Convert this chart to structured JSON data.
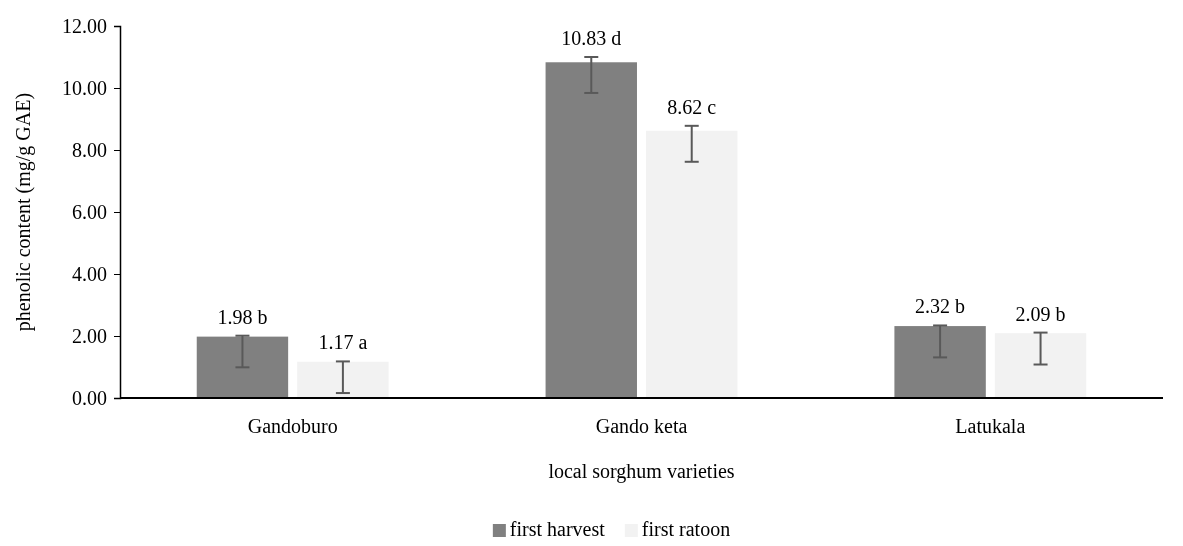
{
  "chart_data": {
    "type": "bar",
    "xlabel": "local sorghum varieties",
    "ylabel": "phenolic content (mg/g  GAE)",
    "categories": [
      "Gandoburo",
      "Gando keta",
      "Latukala"
    ],
    "series": [
      {
        "name": "first harvest",
        "color": "#808080",
        "values": [
          1.98,
          10.83,
          2.32
        ],
        "value_labels": [
          "1.98 b",
          "10.83 d",
          "2.32 b"
        ],
        "errors": [
          [
            0.99,
            2.01
          ],
          [
            9.84,
            11.0
          ],
          [
            1.31,
            2.34
          ]
        ]
      },
      {
        "name": "first ratoon",
        "color": "#f2f2f2",
        "values": [
          1.17,
          8.62,
          2.09
        ],
        "value_labels": [
          "1.17 a",
          "8.62 c",
          "2.09 b"
        ],
        "errors": [
          [
            0.16,
            1.18
          ],
          [
            7.62,
            8.78
          ],
          [
            1.08,
            2.11
          ]
        ]
      }
    ],
    "ylim": [
      0,
      12
    ],
    "yticks": [
      {
        "value": 0,
        "label": "0.00"
      },
      {
        "value": 2,
        "label": "2.00"
      },
      {
        "value": 4,
        "label": "4.00"
      },
      {
        "value": 6,
        "label": "6.00"
      },
      {
        "value": 8,
        "label": "8.00"
      },
      {
        "value": 10,
        "label": "10.00"
      },
      {
        "value": 12,
        "label": "12.00"
      }
    ],
    "grid": false,
    "legend": "bottom"
  }
}
